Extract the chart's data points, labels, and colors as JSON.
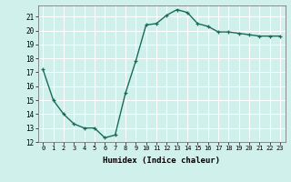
{
  "x": [
    0,
    1,
    2,
    3,
    4,
    5,
    6,
    7,
    8,
    9,
    10,
    11,
    12,
    13,
    14,
    15,
    16,
    17,
    18,
    19,
    20,
    21,
    22,
    23
  ],
  "y": [
    17.2,
    15.0,
    14.0,
    13.3,
    13.0,
    13.0,
    12.3,
    12.5,
    15.5,
    17.8,
    20.4,
    20.5,
    21.1,
    21.5,
    21.3,
    20.5,
    20.3,
    19.9,
    19.9,
    19.8,
    19.7,
    19.6,
    19.6,
    19.6
  ],
  "title": "",
  "xlabel": "Humidex (Indice chaleur)",
  "ylabel": "",
  "xlim": [
    -0.5,
    23.5
  ],
  "ylim": [
    12,
    21.8
  ],
  "yticks": [
    12,
    13,
    14,
    15,
    16,
    17,
    18,
    19,
    20,
    21
  ],
  "xticks": [
    0,
    1,
    2,
    3,
    4,
    5,
    6,
    7,
    8,
    9,
    10,
    11,
    12,
    13,
    14,
    15,
    16,
    17,
    18,
    19,
    20,
    21,
    22,
    23
  ],
  "line_color": "#1a6b5a",
  "bg_color": "#cff0eb",
  "grid_color": "#ffffff",
  "marker": "+",
  "marker_size": 3.5,
  "line_width": 1.0
}
